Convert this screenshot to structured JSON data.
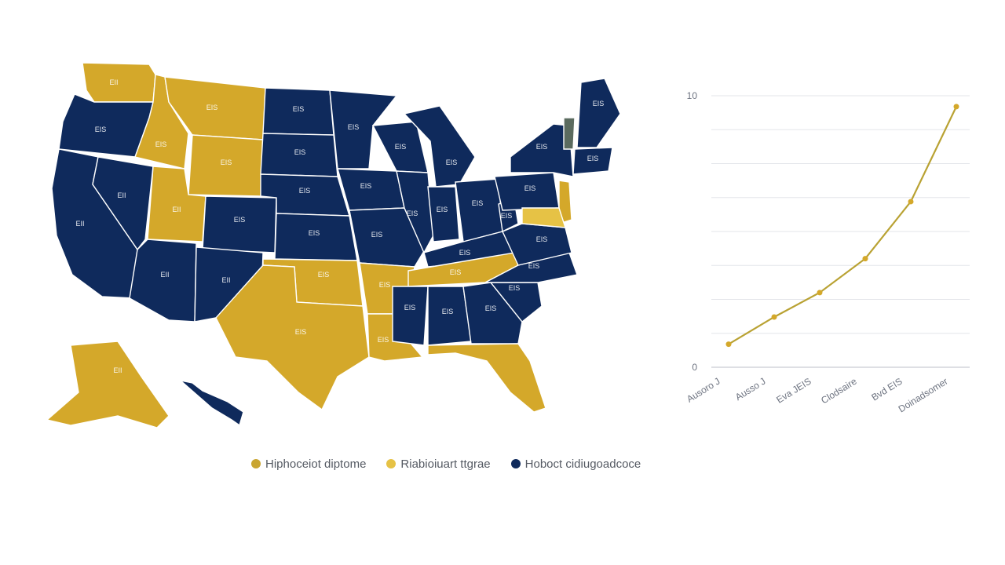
{
  "colors": {
    "dark_gold": "#d4a82a",
    "light_gold": "#e6c245",
    "navy": "#0f2a5c",
    "line": "#b9a233"
  },
  "legend": [
    {
      "label": "Hiphoceiot diptome",
      "color": "#c9a531"
    },
    {
      "label": "Riabioiuart ttgrae",
      "color": "#e6c245"
    },
    {
      "label": "Hoboct cidiugoadcoce",
      "color": "#0f2a5c"
    }
  ],
  "map": {
    "states": [
      {
        "id": "WA",
        "label": "EII",
        "category": "gold"
      },
      {
        "id": "OR",
        "label": "EIS",
        "category": "navy"
      },
      {
        "id": "CA",
        "label": "EII",
        "category": "navy"
      },
      {
        "id": "NV",
        "label": "EII",
        "category": "navy"
      },
      {
        "id": "ID",
        "label": "EIS",
        "category": "gold"
      },
      {
        "id": "MT",
        "label": "EIS",
        "category": "gold"
      },
      {
        "id": "WY",
        "label": "EIS",
        "category": "gold"
      },
      {
        "id": "UT",
        "label": "EII",
        "category": "gold"
      },
      {
        "id": "AZ",
        "label": "EII",
        "category": "navy"
      },
      {
        "id": "CO",
        "label": "EIS",
        "category": "navy"
      },
      {
        "id": "NM",
        "label": "EII",
        "category": "navy"
      },
      {
        "id": "ND",
        "label": "EIS",
        "category": "navy"
      },
      {
        "id": "SD",
        "label": "EIS",
        "category": "navy"
      },
      {
        "id": "NE",
        "label": "EIS",
        "category": "navy"
      },
      {
        "id": "KS",
        "label": "EIS",
        "category": "navy"
      },
      {
        "id": "OK",
        "label": "EIS",
        "category": "gold"
      },
      {
        "id": "TX",
        "label": "EIS",
        "category": "gold"
      },
      {
        "id": "MN",
        "label": "EIS",
        "category": "navy"
      },
      {
        "id": "IA",
        "label": "EIS",
        "category": "navy"
      },
      {
        "id": "MO",
        "label": "EIS",
        "category": "navy"
      },
      {
        "id": "AR",
        "label": "EIS",
        "category": "gold"
      },
      {
        "id": "LA",
        "label": "EIS",
        "category": "gold"
      },
      {
        "id": "WI",
        "label": "EIS",
        "category": "navy"
      },
      {
        "id": "IL",
        "label": "EIS",
        "category": "navy"
      },
      {
        "id": "MI",
        "label": "EIS",
        "category": "navy"
      },
      {
        "id": "IN",
        "label": "EIS",
        "category": "navy"
      },
      {
        "id": "OH",
        "label": "EIS",
        "category": "navy"
      },
      {
        "id": "KY",
        "label": "EIS",
        "category": "navy"
      },
      {
        "id": "TN",
        "label": "EIS",
        "category": "gold"
      },
      {
        "id": "MS",
        "label": "EIS",
        "category": "navy"
      },
      {
        "id": "AL",
        "label": "EIS",
        "category": "navy"
      },
      {
        "id": "GA",
        "label": "EIS",
        "category": "navy"
      },
      {
        "id": "FL",
        "label": "",
        "category": "gold"
      },
      {
        "id": "SC",
        "label": "EIS",
        "category": "navy"
      },
      {
        "id": "NC",
        "label": "EIS",
        "category": "navy"
      },
      {
        "id": "VA",
        "label": "EIS",
        "category": "navy"
      },
      {
        "id": "WV",
        "label": "EIS",
        "category": "navy"
      },
      {
        "id": "PA",
        "label": "EIS",
        "category": "navy"
      },
      {
        "id": "NY",
        "label": "EIS",
        "category": "navy"
      },
      {
        "id": "NJ",
        "label": "",
        "category": "gold"
      },
      {
        "id": "MD",
        "label": "",
        "category": "light"
      },
      {
        "id": "VT",
        "label": "",
        "category": "gray"
      },
      {
        "id": "NE_US",
        "label": "EIS",
        "category": "navy"
      },
      {
        "id": "ME",
        "label": "EIS",
        "category": "navy"
      },
      {
        "id": "AK",
        "label": "EII",
        "category": "gold"
      },
      {
        "id": "HI",
        "label": "",
        "category": "navy"
      }
    ]
  },
  "chart_data": {
    "type": "line",
    "y_tick_labels": [
      "0",
      "10"
    ],
    "ylim": [
      0,
      10
    ],
    "x_tick_labels": [
      "Ausoro J",
      "Ausso J",
      "Eva JEIS",
      "Clodsaire",
      "Bvd EIS",
      "Doinadsomer"
    ],
    "series": [
      {
        "values": [
          0.85,
          1.85,
          2.75,
          4.0,
          6.1,
          9.6
        ]
      }
    ],
    "xlabel": "",
    "ylabel": "",
    "grid": true
  }
}
